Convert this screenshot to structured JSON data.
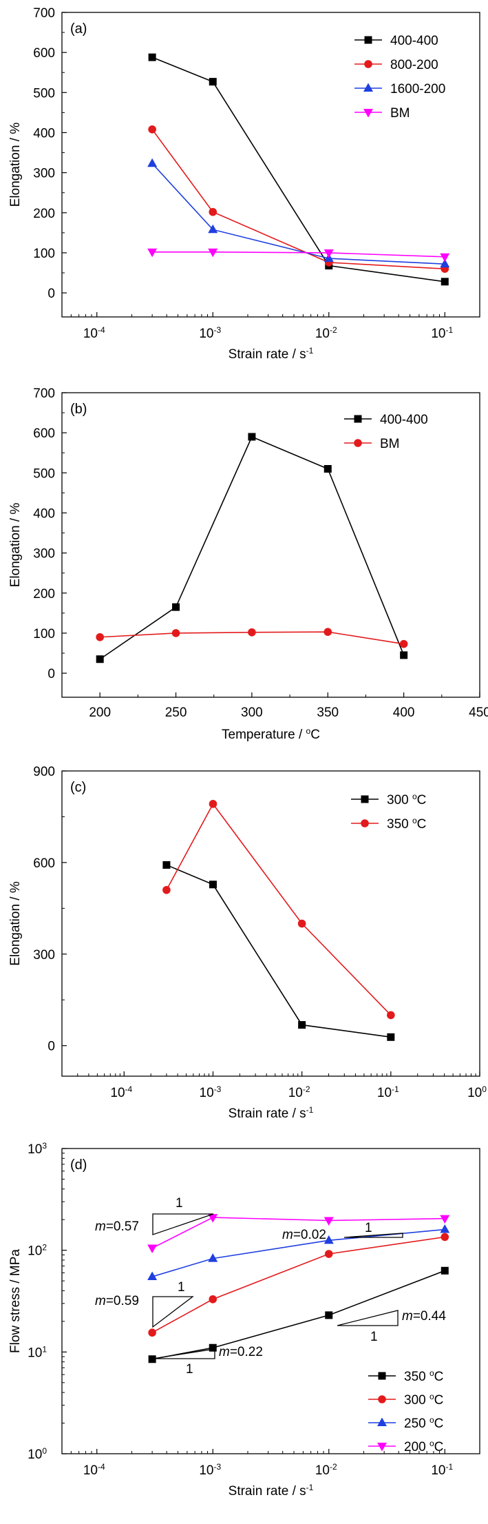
{
  "chart_data": [
    {
      "panel_label": "(a)",
      "type": "line",
      "xlabel": "Strain rate / s",
      "xlabel_sup": "-1",
      "ylabel": "Elongation / %",
      "xscale": "log",
      "xlim": [
        5e-05,
        0.2
      ],
      "ylim": [
        -60,
        700
      ],
      "x_ticks": [
        {
          "value": 0.0001,
          "base": "10",
          "exp": "-4"
        },
        {
          "value": 0.001,
          "base": "10",
          "exp": "-3"
        },
        {
          "value": 0.01,
          "base": "10",
          "exp": "-2"
        },
        {
          "value": 0.1,
          "base": "10",
          "exp": "-1"
        }
      ],
      "y_ticks": [
        0,
        100,
        200,
        300,
        400,
        500,
        600,
        700
      ],
      "legend_position": "top-right",
      "series": [
        {
          "name": "400-400",
          "color": "#000000",
          "marker": "square",
          "x": [
            0.0003,
            0.001,
            0.01,
            0.1
          ],
          "y": [
            588,
            527,
            68,
            28
          ]
        },
        {
          "name": "800-200",
          "color": "#e31a1c",
          "marker": "circle",
          "x": [
            0.0003,
            0.001,
            0.01,
            0.1
          ],
          "y": [
            408,
            202,
            76,
            60
          ]
        },
        {
          "name": "1600-200",
          "color": "#1f3fdf",
          "marker": "triangle-up",
          "x": [
            0.0003,
            0.001,
            0.01,
            0.1
          ],
          "y": [
            323,
            158,
            86,
            72
          ]
        },
        {
          "name": "BM",
          "color": "#ff00ff",
          "marker": "triangle-down",
          "x": [
            0.0003,
            0.001,
            0.01,
            0.1
          ],
          "y": [
            102,
            102,
            100,
            90
          ]
        }
      ],
      "annotations": []
    },
    {
      "panel_label": "(b)",
      "type": "line",
      "xlabel": "Temperature / ",
      "xlabel_sup": "o",
      "xlabel_tail": "C",
      "ylabel": "Elongation / %",
      "xscale": "linear",
      "xlim": [
        175,
        450
      ],
      "ylim": [
        -60,
        700
      ],
      "x_ticks": [
        {
          "value": 200,
          "label": "200"
        },
        {
          "value": 250,
          "label": "250"
        },
        {
          "value": 300,
          "label": "300"
        },
        {
          "value": 350,
          "label": "350"
        },
        {
          "value": 400,
          "label": "400"
        },
        {
          "value": 450,
          "label": "450"
        }
      ],
      "y_ticks": [
        0,
        100,
        200,
        300,
        400,
        500,
        600,
        700
      ],
      "legend_position": "top-right",
      "series": [
        {
          "name": "400-400",
          "color": "#000000",
          "marker": "square",
          "x": [
            200,
            250,
            300,
            350,
            400
          ],
          "y": [
            35,
            165,
            590,
            510,
            45
          ]
        },
        {
          "name": "BM",
          "color": "#e31a1c",
          "marker": "circle",
          "x": [
            200,
            250,
            300,
            350,
            400
          ],
          "y": [
            90,
            100,
            102,
            103,
            73
          ]
        }
      ],
      "annotations": []
    },
    {
      "panel_label": "(c)",
      "type": "line",
      "xlabel": "Strain rate / s",
      "xlabel_sup": "-1",
      "ylabel": "Elongation / %",
      "xscale": "log",
      "xlim": [
        2e-05,
        1
      ],
      "ylim": [
        -100,
        900
      ],
      "x_ticks": [
        {
          "value": 0.0001,
          "base": "10",
          "exp": "-4"
        },
        {
          "value": 0.001,
          "base": "10",
          "exp": "-3"
        },
        {
          "value": 0.01,
          "base": "10",
          "exp": "-2"
        },
        {
          "value": 0.1,
          "base": "10",
          "exp": "-1"
        },
        {
          "value": 1,
          "base": "10",
          "exp": "0"
        }
      ],
      "y_ticks": [
        0,
        300,
        600,
        900
      ],
      "legend_position": "top-right",
      "series": [
        {
          "name": "300 ",
          "name_sup": "o",
          "name_tail": "C",
          "color": "#000000",
          "marker": "square",
          "x": [
            0.0003,
            0.001,
            0.01,
            0.1
          ],
          "y": [
            592,
            528,
            68,
            28
          ]
        },
        {
          "name": "350 ",
          "name_sup": "o",
          "name_tail": "C",
          "color": "#e31a1c",
          "marker": "circle",
          "x": [
            0.0003,
            0.001,
            0.01,
            0.1
          ],
          "y": [
            510,
            792,
            400,
            100
          ]
        }
      ],
      "annotations": []
    },
    {
      "panel_label": "(d)",
      "type": "line",
      "xlabel": "Strain rate / s",
      "xlabel_sup": "-1",
      "ylabel": "Flow stress / MPa",
      "xscale": "log",
      "yscale": "log",
      "xlim": [
        5e-05,
        0.2
      ],
      "ylim": [
        1,
        1000
      ],
      "x_ticks": [
        {
          "value": 0.0001,
          "base": "10",
          "exp": "-4"
        },
        {
          "value": 0.001,
          "base": "10",
          "exp": "-3"
        },
        {
          "value": 0.01,
          "base": "10",
          "exp": "-2"
        },
        {
          "value": 0.1,
          "base": "10",
          "exp": "-1"
        }
      ],
      "y_ticks": [
        {
          "value": 1,
          "base": "10",
          "exp": "0"
        },
        {
          "value": 10,
          "base": "10",
          "exp": "1"
        },
        {
          "value": 100,
          "base": "10",
          "exp": "2"
        },
        {
          "value": 1000,
          "base": "10",
          "exp": "3"
        }
      ],
      "legend_position": "bottom-right",
      "series": [
        {
          "name": "350 ",
          "name_sup": "o",
          "name_tail": "C",
          "color": "#000000",
          "marker": "square",
          "x": [
            0.0003,
            0.001,
            0.01,
            0.1
          ],
          "y": [
            8.5,
            11,
            23,
            63
          ]
        },
        {
          "name": "300 ",
          "name_sup": "o",
          "name_tail": "C",
          "color": "#e31a1c",
          "marker": "circle",
          "x": [
            0.0003,
            0.001,
            0.01,
            0.1
          ],
          "y": [
            15.5,
            33,
            92,
            135
          ]
        },
        {
          "name": "250 ",
          "name_sup": "o",
          "name_tail": "C",
          "color": "#1f3fdf",
          "marker": "triangle-up",
          "x": [
            0.0003,
            0.001,
            0.01,
            0.1
          ],
          "y": [
            55,
            83,
            125,
            160
          ]
        },
        {
          "name": "200 ",
          "name_sup": "o",
          "name_tail": "C",
          "color": "#ff00ff",
          "marker": "triangle-down",
          "x": [
            0.0003,
            0.001,
            0.01,
            0.1
          ],
          "y": [
            105,
            210,
            196,
            205
          ]
        }
      ],
      "annotations": [
        {
          "m_text": "m",
          "value_text": "=0.57",
          "run_label": "1"
        },
        {
          "m_text": "m",
          "value_text": "=0.02",
          "run_label": "1"
        },
        {
          "m_text": "m",
          "value_text": "=0.59",
          "run_label": "1"
        },
        {
          "m_text": "m",
          "value_text": "=0.44",
          "run_label": "1"
        },
        {
          "m_text": "m",
          "value_text": "=0.22",
          "run_label": "1"
        }
      ]
    }
  ]
}
